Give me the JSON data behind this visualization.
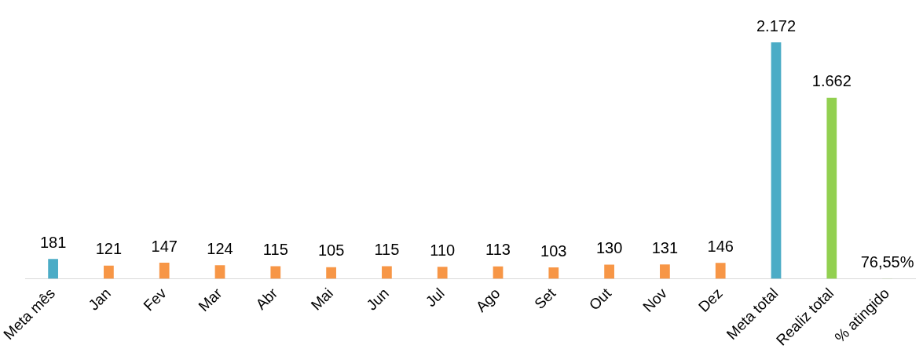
{
  "chart_data": {
    "type": "bar",
    "categories": [
      "Meta mês",
      "Jan",
      "Fev",
      "Mar",
      "Abr",
      "Mai",
      "Jun",
      "Jul",
      "Ago",
      "Set",
      "Out",
      "Nov",
      "Dez",
      "Meta total",
      "Realiz total",
      "% atingido"
    ],
    "values": [
      181,
      121,
      147,
      124,
      115,
      105,
      115,
      110,
      113,
      103,
      130,
      131,
      146,
      2172,
      1662,
      0.7655
    ],
    "colors": [
      "#4bacc6",
      "#f79646",
      "#f79646",
      "#f79646",
      "#f79646",
      "#f79646",
      "#f79646",
      "#f79646",
      "#f79646",
      "#f79646",
      "#f79646",
      "#f79646",
      "#f79646",
      "#4bacc6",
      "#92d050",
      "#92d050"
    ],
    "value_labels": [
      "181",
      "121",
      "147",
      "124",
      "115",
      "105",
      "115",
      "110",
      "113",
      "103",
      "130",
      "131",
      "146",
      "2.172",
      "1.662",
      "76,55%"
    ],
    "grid": false,
    "legend": false
  }
}
